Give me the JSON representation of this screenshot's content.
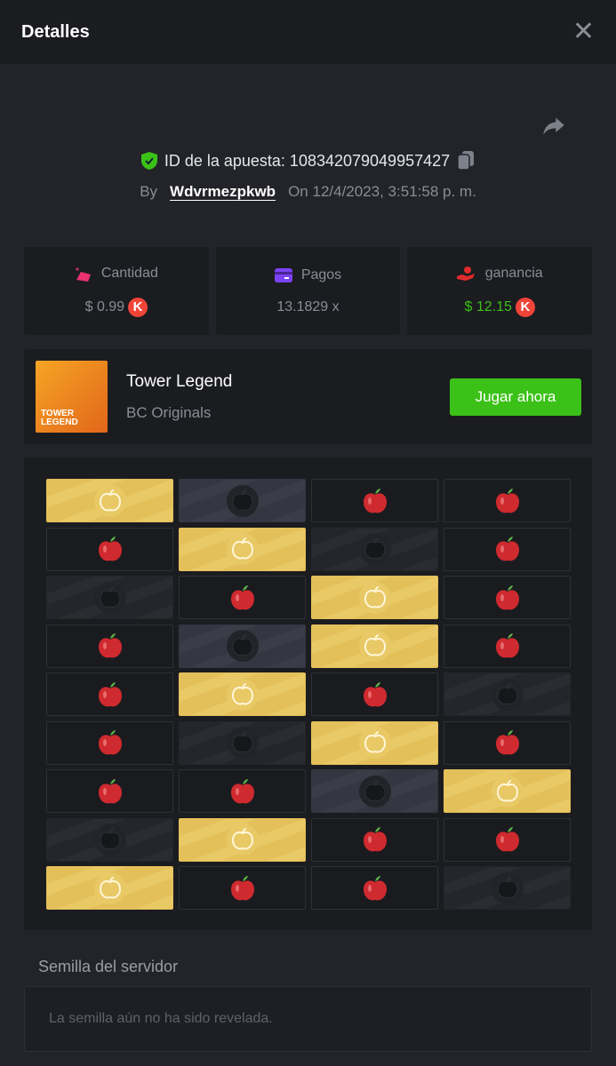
{
  "header": {
    "title": "Detalles"
  },
  "bet": {
    "id_label": "ID de la apuesta: 108342079049957427",
    "by_label": "By",
    "user": "Wdvrmezpkwb",
    "on_label": "On",
    "datetime": "12/4/2023, 3:51:58 p. m."
  },
  "stats": [
    {
      "label": "Cantidad",
      "value": "$ 0.99",
      "coin": "K",
      "icon": "bet-amount-icon",
      "icon_color": "#e8336e",
      "value_color": "#8a8d96"
    },
    {
      "label": "Pagos",
      "value": "13.1829 x",
      "icon": "payout-card-icon",
      "icon_color": "#7b43f5",
      "value_color": "#8a8d96"
    },
    {
      "label": "ganancia",
      "value": "$ 12.15",
      "coin": "K",
      "icon": "profit-icon",
      "icon_color": "#e02b2b",
      "value_color": "#3bc117"
    }
  ],
  "game": {
    "name": "Tower Legend",
    "provider": "BC Originals",
    "thumb_text": "TOWER LEGEND",
    "play_label": "Jugar ahora"
  },
  "board": [
    [
      "gold",
      "bombl",
      "apple",
      "apple"
    ],
    [
      "apple",
      "gold",
      "bombd",
      "apple"
    ],
    [
      "bombd",
      "apple",
      "gold",
      "apple"
    ],
    [
      "apple",
      "bombl",
      "gold",
      "apple"
    ],
    [
      "apple",
      "gold",
      "apple",
      "bombd"
    ],
    [
      "apple",
      "bombd",
      "gold",
      "apple"
    ],
    [
      "apple",
      "apple",
      "bombl",
      "gold"
    ],
    [
      "bombd",
      "gold",
      "apple",
      "apple"
    ],
    [
      "gold",
      "apple",
      "apple",
      "bombd"
    ]
  ],
  "seed": {
    "label": "Semilla del servidor",
    "placeholder": "La semilla aún no ha sido revelada."
  }
}
